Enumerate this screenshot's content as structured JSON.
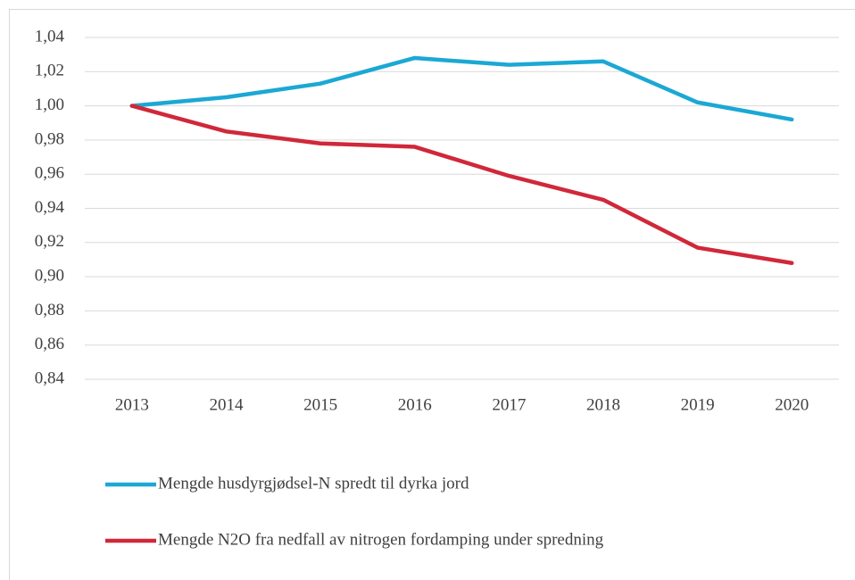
{
  "chart_data": {
    "type": "line",
    "categories": [
      "2013",
      "2014",
      "2015",
      "2016",
      "2017",
      "2018",
      "2019",
      "2020"
    ],
    "series": [
      {
        "name": "Mengde husdyrgjødsel-N spredt til dyrka jord",
        "color": "#1ba8d4",
        "values": [
          1.0,
          1.005,
          1.013,
          1.028,
          1.024,
          1.026,
          1.002,
          0.992
        ]
      },
      {
        "name": "Mengde N2O fra nedfall av nitrogen fordamping under spredning",
        "color": "#d0283a",
        "values": [
          1.0,
          0.985,
          0.978,
          0.976,
          0.959,
          0.945,
          0.917,
          0.908
        ]
      }
    ],
    "ylim": [
      0.84,
      1.04
    ],
    "yticks": [
      {
        "value": 0.84,
        "label": "0,84"
      },
      {
        "value": 0.86,
        "label": "0,86"
      },
      {
        "value": 0.88,
        "label": "0,88"
      },
      {
        "value": 0.9,
        "label": "0,90"
      },
      {
        "value": 0.92,
        "label": "0,92"
      },
      {
        "value": 0.94,
        "label": "0,94"
      },
      {
        "value": 0.96,
        "label": "0,96"
      },
      {
        "value": 0.98,
        "label": "0,98"
      },
      {
        "value": 1.0,
        "label": "1,00"
      },
      {
        "value": 1.02,
        "label": "1,02"
      },
      {
        "value": 1.04,
        "label": "1,04"
      }
    ],
    "grid": true,
    "legend": "bottom"
  }
}
